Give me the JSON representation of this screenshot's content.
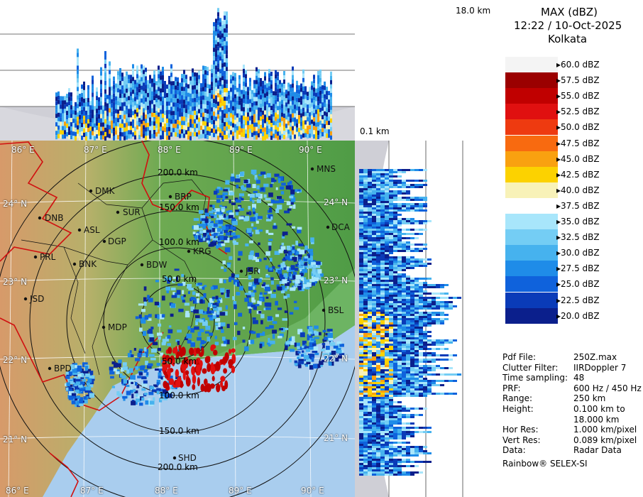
{
  "header": {
    "title": "MAX (dBZ)",
    "datetime": "12:22 / 10-Oct-2025",
    "location": "Kolkata"
  },
  "top_panel": {
    "height_label": "18.0 km",
    "base_label": "0.1 km"
  },
  "legend": {
    "colors": {
      "60.0": "#f4f4f4",
      "57.5": "#9b0000",
      "55.0": "#c00000",
      "52.5": "#e01010",
      "50.0": "#ee3a10",
      "47.5": "#f86a10",
      "45.0": "#f9a110",
      "42.5": "#fcd200",
      "40.0": "#f8f2b8",
      "37.5": "#ffffff",
      "35.0": "#a8e6fb",
      "32.5": "#74cdf4",
      "30.0": "#46b2ee",
      "27.5": "#1f8ce8",
      "25.0": "#0f62dc",
      "22.5": "#0a3bb8",
      "20.0": "#0b1f8c"
    },
    "labels": [
      "60.0 dBZ",
      "57.5 dBZ",
      "55.0 dBZ",
      "52.5 dBZ",
      "50.0 dBZ",
      "47.5 dBZ",
      "45.0 dBZ",
      "42.5 dBZ",
      "40.0 dBZ",
      "37.5 dBZ",
      "35.0 dBZ",
      "32.5 dBZ",
      "30.0 dBZ",
      "27.5 dBZ",
      "25.0 dBZ",
      "22.5 dBZ",
      "20.0 dBZ"
    ]
  },
  "info": {
    "rows": [
      {
        "key": "Pdf File:",
        "value": "250Z.max"
      },
      {
        "key": "Clutter Filter:",
        "value": "IIRDoppler 7"
      },
      {
        "key": "Time sampling:",
        "value": "48"
      },
      {
        "key": "PRF:",
        "value": "600 Hz / 450 Hz"
      },
      {
        "key": "Range:",
        "value": "250 km"
      },
      {
        "key": "Height:",
        "value": "0.100 km to"
      },
      {
        "key": "",
        "value": "18.000 km"
      },
      {
        "key": "Hor Res:",
        "value": "1.000 km/pixel"
      },
      {
        "key": "Vert Res:",
        "value": "0.089 km/pixel"
      },
      {
        "key": "Data:",
        "value": "Radar Data"
      }
    ],
    "footer": "Rainbow® SELEX-SI"
  },
  "map": {
    "lon_top": [
      "86° E",
      "87° E",
      "88° E",
      "89° E",
      "90° E"
    ],
    "lon_bottom": [
      "86° E",
      "87° E",
      "88° E",
      "89° E",
      "90° E"
    ],
    "lat_right": [
      "24° N",
      "23° N",
      "22° N",
      "21° N"
    ],
    "lat_left": [
      "24° N",
      "23° N",
      "22° N",
      "21° N"
    ],
    "ranges": [
      "50.0 km",
      "100.0 km",
      "150.0 km",
      "200.0 km",
      "50.0 km",
      "100.0 km",
      "150.0 km",
      "200.0 km"
    ],
    "cities": [
      {
        "code": "DMK"
      },
      {
        "code": "BRP"
      },
      {
        "code": "MNS"
      },
      {
        "code": "DNB"
      },
      {
        "code": "SUR"
      },
      {
        "code": "ASL"
      },
      {
        "code": "DGP"
      },
      {
        "code": "DCA"
      },
      {
        "code": "PRL"
      },
      {
        "code": "BNK"
      },
      {
        "code": "BDW"
      },
      {
        "code": "KRG"
      },
      {
        "code": "JSR"
      },
      {
        "code": "JSD"
      },
      {
        "code": "BSL"
      },
      {
        "code": "MDP"
      },
      {
        "code": "BPD"
      },
      {
        "code": "SHD"
      }
    ]
  }
}
